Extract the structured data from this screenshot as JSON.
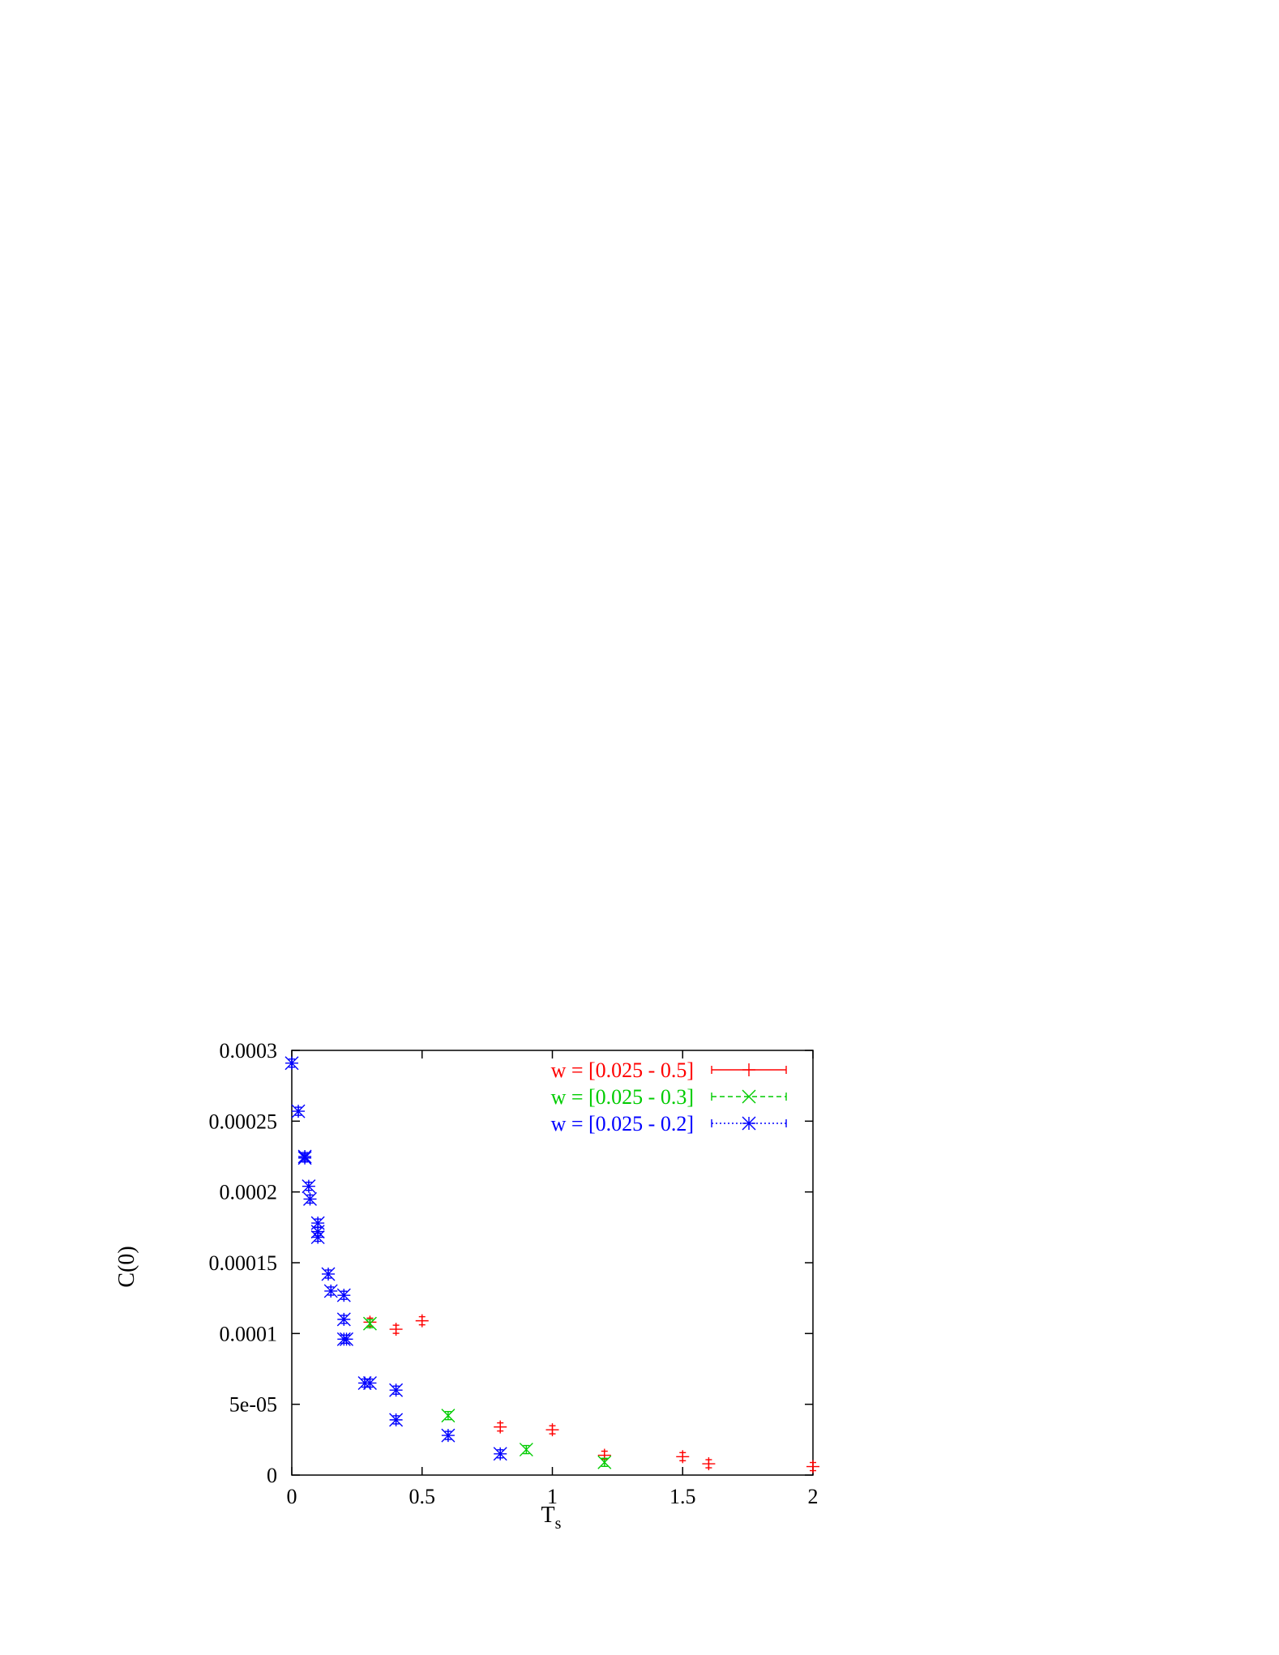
{
  "chart_data": {
    "type": "scatter",
    "xlabel": "T",
    "xlabel_sub": "s",
    "ylabel": "C(0)",
    "xlim": [
      0,
      2
    ],
    "ylim": [
      0,
      0.0003
    ],
    "x_ticks": [
      0,
      0.5,
      1,
      1.5,
      2
    ],
    "x_tick_labels": [
      "0",
      "0.5",
      "1",
      "1.5",
      "2"
    ],
    "y_ticks": [
      0,
      5e-05,
      0.0001,
      0.00015,
      0.0002,
      0.00025,
      0.0003
    ],
    "y_tick_labels": [
      "0",
      "5e-05",
      "0.0001",
      "0.00015",
      "0.0002",
      "0.00025",
      "0.0003"
    ],
    "grid": false,
    "legend_position": "top-right",
    "series": [
      {
        "name": "w = [0.025 - 0.5]",
        "color": "#ff0000",
        "marker": "plus",
        "points": [
          [
            0.3,
            0.000108
          ],
          [
            0.4,
            0.000103
          ],
          [
            0.5,
            0.000109
          ],
          [
            0.8,
            3.4e-05
          ],
          [
            1.0,
            3.2e-05
          ],
          [
            1.2,
            1.4e-05
          ],
          [
            1.5,
            1.3e-05
          ],
          [
            1.6,
            8e-06
          ],
          [
            2.0,
            6e-06
          ]
        ]
      },
      {
        "name": "w = [0.025 - 0.3]",
        "color": "#00cc00",
        "marker": "x",
        "points": [
          [
            0.3,
            0.000107
          ],
          [
            0.6,
            4.2e-05
          ],
          [
            0.9,
            1.8e-05
          ],
          [
            1.2,
            9e-06
          ]
        ]
      },
      {
        "name": "w = [0.025 - 0.2]",
        "color": "#0000ff",
        "marker": "star",
        "points": [
          [
            0.0,
            0.000291
          ],
          [
            0.025,
            0.000257
          ],
          [
            0.05,
            0.000225
          ],
          [
            0.05,
            0.000224
          ],
          [
            0.065,
            0.000204
          ],
          [
            0.07,
            0.000195
          ],
          [
            0.1,
            0.000178
          ],
          [
            0.1,
            0.000172
          ],
          [
            0.1,
            0.000168
          ],
          [
            0.14,
            0.000142
          ],
          [
            0.15,
            0.00013
          ],
          [
            0.2,
            0.000127
          ],
          [
            0.2,
            0.00011
          ],
          [
            0.2,
            9.6e-05
          ],
          [
            0.21,
            9.6e-05
          ],
          [
            0.28,
            6.5e-05
          ],
          [
            0.3,
            6.5e-05
          ],
          [
            0.4,
            6e-05
          ],
          [
            0.4,
            3.9e-05
          ],
          [
            0.6,
            2.8e-05
          ],
          [
            0.8,
            1.5e-05
          ]
        ]
      }
    ]
  }
}
